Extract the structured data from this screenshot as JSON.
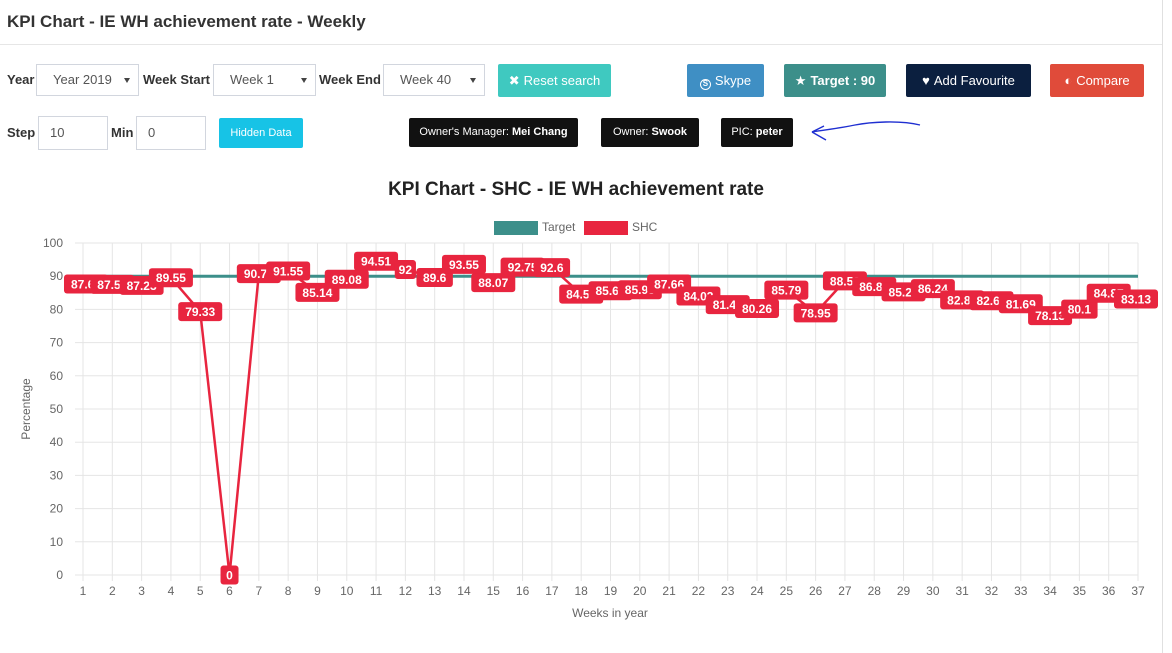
{
  "page": {
    "title": "KPI Chart - IE WH achievement rate - Weekly"
  },
  "filters": {
    "year_label": "Year",
    "year_value": "Year 2019",
    "week_start_label": "Week Start",
    "week_start_value": "Week 1",
    "week_end_label": "Week End",
    "week_end_value": "Week 40",
    "reset_label": "Reset search",
    "step_label": "Step",
    "step_value": "10",
    "min_label": "Min",
    "min_value": "0",
    "hidden_data_label": "Hidden Data"
  },
  "actions": {
    "skype_label": "Skype",
    "target_label": "Target : 90",
    "favourite_label": "Add Favourite",
    "compare_label": "Compare"
  },
  "owners": {
    "manager_label": "Owner's Manager:",
    "manager_value": "Mei Chang",
    "owner_label": "Owner:",
    "owner_value": "Swook",
    "pic_label": "PIC:",
    "pic_value": "peter"
  },
  "colors": {
    "target": "#3c8f8a",
    "shc": "#e8253f",
    "reset": "#3fc9c0",
    "skype": "#3f8fc4",
    "target_btn": "#3c8f8a",
    "favourite": "#0b1f3f",
    "compare": "#e04b3a",
    "hidden": "#17c3e6",
    "annotation": "#1f2fd1"
  },
  "icons": {
    "reset": "times-icon",
    "skype": "skype-icon",
    "target": "star-icon",
    "favourite": "heart-icon",
    "compare": "half-circle-icon"
  },
  "chart_data": {
    "type": "line",
    "title": "KPI Chart - SHC - IE WH achievement rate",
    "xlabel": "Weeks in year",
    "ylabel": "Percentage",
    "ylim": [
      0,
      100
    ],
    "ystep": 10,
    "grid": true,
    "legend": "top",
    "x": [
      1,
      2,
      3,
      4,
      5,
      6,
      7,
      8,
      9,
      10,
      11,
      12,
      13,
      14,
      15,
      16,
      17,
      18,
      19,
      20,
      21,
      22,
      23,
      24,
      25,
      26,
      27,
      28,
      29,
      30,
      31,
      32,
      33,
      34,
      35,
      36,
      37
    ],
    "series": [
      {
        "name": "Target",
        "values": [
          90,
          90,
          90,
          90,
          90,
          90,
          90,
          90,
          90,
          90,
          90,
          90,
          90,
          90,
          90,
          90,
          90,
          90,
          90,
          90,
          90,
          90,
          90,
          90,
          90,
          90,
          90,
          90,
          90,
          90,
          90,
          90,
          90,
          90,
          90,
          90,
          90
        ]
      },
      {
        "name": "SHC",
        "values": [
          87.64,
          87.55,
          87.23,
          89.55,
          79.33,
          0,
          90.76,
          91.55,
          85.14,
          89.08,
          94.51,
          92,
          89.6,
          93.55,
          88.07,
          92.75,
          92.6,
          84.59,
          85.63,
          85.93,
          87.66,
          84.03,
          81.45,
          80.26,
          85.79,
          78.95,
          88.58,
          86.86,
          85.27,
          86.24,
          82.87,
          82.61,
          81.69,
          78.13,
          80.1,
          84.87,
          83.13
        ]
      }
    ]
  }
}
